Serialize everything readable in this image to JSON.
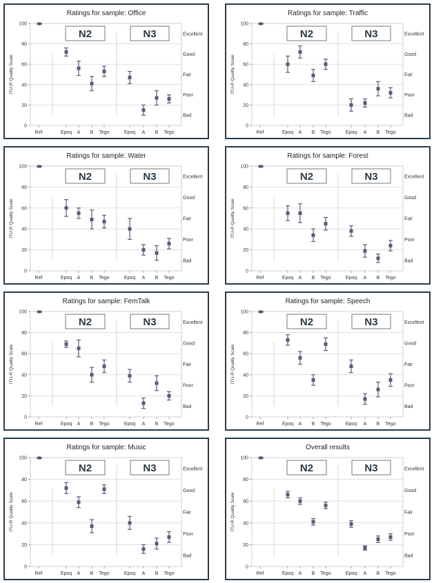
{
  "chart_data": [
    {
      "type": "errorbar",
      "title": "Ratings for sample: Office",
      "ylabel": "ITU-R Quality Scale",
      "ylim": [
        0,
        100
      ],
      "categories": [
        "Ref",
        "Epoq",
        "A",
        "B",
        "Tego",
        "Epoq",
        "A",
        "B",
        "Tego"
      ],
      "groups": [
        "N2",
        "N3"
      ],
      "quality_labels": [
        "Excellent",
        "Good",
        "Fair",
        "Poor",
        "Bad"
      ],
      "values": [
        100,
        72,
        56,
        41,
        53,
        47,
        15,
        27,
        26
      ],
      "ci": [
        0,
        4,
        7,
        7,
        5,
        6,
        5,
        7,
        4
      ]
    },
    {
      "type": "errorbar",
      "title": "Ratings for sample: Traffic",
      "ylabel": "ITU-R Quality Scale",
      "ylim": [
        0,
        100
      ],
      "categories": [
        "Ref",
        "Epoq",
        "A",
        "B",
        "Tego",
        "Epoq",
        "A",
        "B",
        "Tego"
      ],
      "groups": [
        "N2",
        "N3"
      ],
      "quality_labels": [
        "Excellent",
        "Good",
        "Fair",
        "Poor",
        "Bad"
      ],
      "values": [
        100,
        60,
        72,
        49,
        60,
        20,
        22,
        36,
        32
      ],
      "ci": [
        0,
        8,
        6,
        6,
        5,
        6,
        4,
        7,
        5
      ]
    },
    {
      "type": "errorbar",
      "title": "Ratings for sample: Water",
      "ylabel": "ITU-R Quality Scale",
      "ylim": [
        0,
        100
      ],
      "categories": [
        "Ref",
        "Epoq",
        "A",
        "B",
        "Tego",
        "Epoq",
        "A",
        "B",
        "Tego"
      ],
      "groups": [
        "N2",
        "N3"
      ],
      "quality_labels": [
        "Excellent",
        "Good",
        "Fair",
        "Poor",
        "Bad"
      ],
      "values": [
        100,
        60,
        55,
        49,
        47,
        40,
        20,
        17,
        26
      ],
      "ci": [
        0,
        8,
        5,
        9,
        6,
        10,
        5,
        7,
        5
      ]
    },
    {
      "type": "errorbar",
      "title": "Ratings for sample: Forest",
      "ylabel": "ITU-R Quality Scale",
      "ylim": [
        0,
        100
      ],
      "categories": [
        "Ref",
        "Epoq",
        "A",
        "B",
        "Tego",
        "Epoq",
        "A",
        "B",
        "Tego"
      ],
      "groups": [
        "N2",
        "N3"
      ],
      "quality_labels": [
        "Excellent",
        "Good",
        "Fair",
        "Poor",
        "Bad"
      ],
      "values": [
        100,
        55,
        55,
        34,
        45,
        38,
        19,
        12,
        24
      ],
      "ci": [
        0,
        7,
        9,
        6,
        6,
        5,
        6,
        4,
        5
      ]
    },
    {
      "type": "errorbar",
      "title": "Ratings for sample: FemTalk",
      "ylabel": "ITU-R Quality Scale",
      "ylim": [
        0,
        100
      ],
      "categories": [
        "Ref",
        "Epoq",
        "A",
        "B",
        "Tego",
        "Epoq",
        "A",
        "B",
        "Tego"
      ],
      "groups": [
        "N2",
        "N3"
      ],
      "quality_labels": [
        "Excellent",
        "Good",
        "Fair",
        "Poor",
        "Bad"
      ],
      "values": [
        100,
        69,
        65,
        40,
        48,
        39,
        13,
        32,
        20
      ],
      "ci": [
        0,
        3,
        8,
        7,
        6,
        6,
        5,
        7,
        4
      ]
    },
    {
      "type": "errorbar",
      "title": "Ratings for sample: Speech",
      "ylabel": "ITU-R Quality Scale",
      "ylim": [
        0,
        100
      ],
      "categories": [
        "Ref",
        "Epoq",
        "A",
        "B",
        "Tego",
        "Epoq",
        "A",
        "B",
        "Tego"
      ],
      "groups": [
        "N2",
        "N3"
      ],
      "quality_labels": [
        "Excellent",
        "Good",
        "Fair",
        "Poor",
        "Bad"
      ],
      "values": [
        100,
        73,
        56,
        35,
        69,
        48,
        17,
        26,
        35
      ],
      "ci": [
        0,
        5,
        6,
        5,
        6,
        6,
        5,
        7,
        6
      ]
    },
    {
      "type": "errorbar",
      "title": "Ratings for sample: Music",
      "ylabel": "ITU-R Quality Scale",
      "ylim": [
        0,
        100
      ],
      "categories": [
        "Ref",
        "Epoq",
        "A",
        "B",
        "Tego",
        "Epoq",
        "A",
        "B",
        "Tego"
      ],
      "groups": [
        "N2",
        "N3"
      ],
      "quality_labels": [
        "Excellent",
        "Good",
        "Fair",
        "Poor",
        "Bad"
      ],
      "values": [
        100,
        72,
        59,
        37,
        71,
        40,
        16,
        21,
        27
      ],
      "ci": [
        0,
        5,
        5,
        6,
        4,
        6,
        4,
        5,
        5
      ]
    },
    {
      "type": "errorbar",
      "title": "Overall results",
      "ylabel": "ITU-R Quality Scale",
      "ylim": [
        0,
        100
      ],
      "categories": [
        "Ref",
        "Epoq",
        "A",
        "B",
        "Tego",
        "Epoq",
        "A",
        "B",
        "Tego"
      ],
      "groups": [
        "N2",
        "N3"
      ],
      "quality_labels": [
        "Excellent",
        "Good",
        "Fair",
        "Poor",
        "Bad"
      ],
      "values": [
        100,
        66,
        60,
        41,
        56,
        39,
        17,
        25,
        27
      ],
      "ci": [
        0,
        3,
        3,
        3,
        3,
        3,
        2,
        3,
        3
      ]
    }
  ],
  "colors": {
    "frame": "#2b3a46",
    "marker": "#5a5a78",
    "grid": "#cccccc",
    "separator": "#999999"
  }
}
